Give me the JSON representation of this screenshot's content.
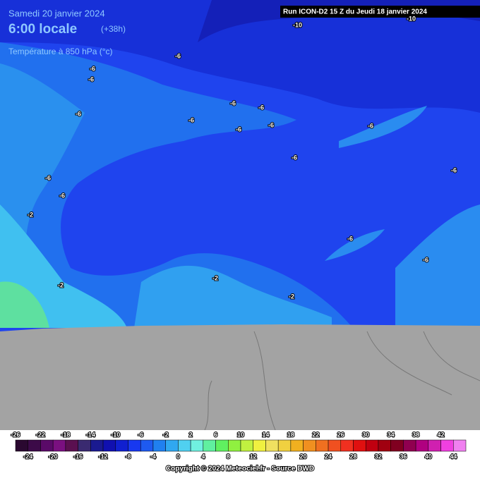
{
  "header": {
    "date": "Samedi 20 janvier 2024",
    "time": "6:00 locale",
    "offset": "(+38h)",
    "variable": "Température à 850 hPa (°c)",
    "run": "Run ICON-D2 15 Z du Jeudi 18 janvier 2024"
  },
  "contour_labels": [
    "-10",
    "-10",
    "-6",
    "-6",
    "-6",
    "-6",
    "-6",
    "-6",
    "-6",
    "-6",
    "-6",
    "-6",
    "-6",
    "-6",
    "-6",
    "-6",
    "-6",
    "-6",
    "-2",
    "-2",
    "-2",
    "-2"
  ],
  "legend": {
    "top_labels": [
      "-26",
      "-22",
      "-18",
      "-14",
      "-10",
      "-6",
      "-2",
      "2",
      "6",
      "10",
      "14",
      "18",
      "22",
      "26",
      "30",
      "34",
      "38",
      "42"
    ],
    "bottom_labels": [
      "-24",
      "-20",
      "-16",
      "-12",
      "-8",
      "-4",
      "0",
      "4",
      "8",
      "12",
      "16",
      "20",
      "24",
      "28",
      "32",
      "36",
      "40",
      "44"
    ],
    "colors": [
      "#2a0830",
      "#3c0a48",
      "#5a0a68",
      "#7a1080",
      "#5a1050",
      "#3a2a70",
      "#1a1a90",
      "#1010b0",
      "#1020d0",
      "#1838f0",
      "#1e5af0",
      "#2080f0",
      "#30a8f0",
      "#50d0f0",
      "#70f0e0",
      "#60f0a0",
      "#60f060",
      "#90f040",
      "#c0f040",
      "#f0f040",
      "#f0e060",
      "#f0d040",
      "#f0b020",
      "#f09020",
      "#f07020",
      "#f05020",
      "#f03020",
      "#e01010",
      "#c00010",
      "#a00010",
      "#800020",
      "#900050",
      "#b00080",
      "#d020b0",
      "#f040e0",
      "#f080f0"
    ]
  },
  "copyright": "Copyright © 2024 Meteociel.fr - Source DWD"
}
